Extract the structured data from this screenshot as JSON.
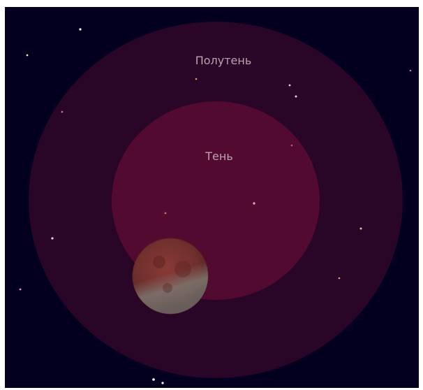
{
  "penumbra": {
    "label": "Полутень"
  },
  "umbra": {
    "label": "Тень"
  }
}
